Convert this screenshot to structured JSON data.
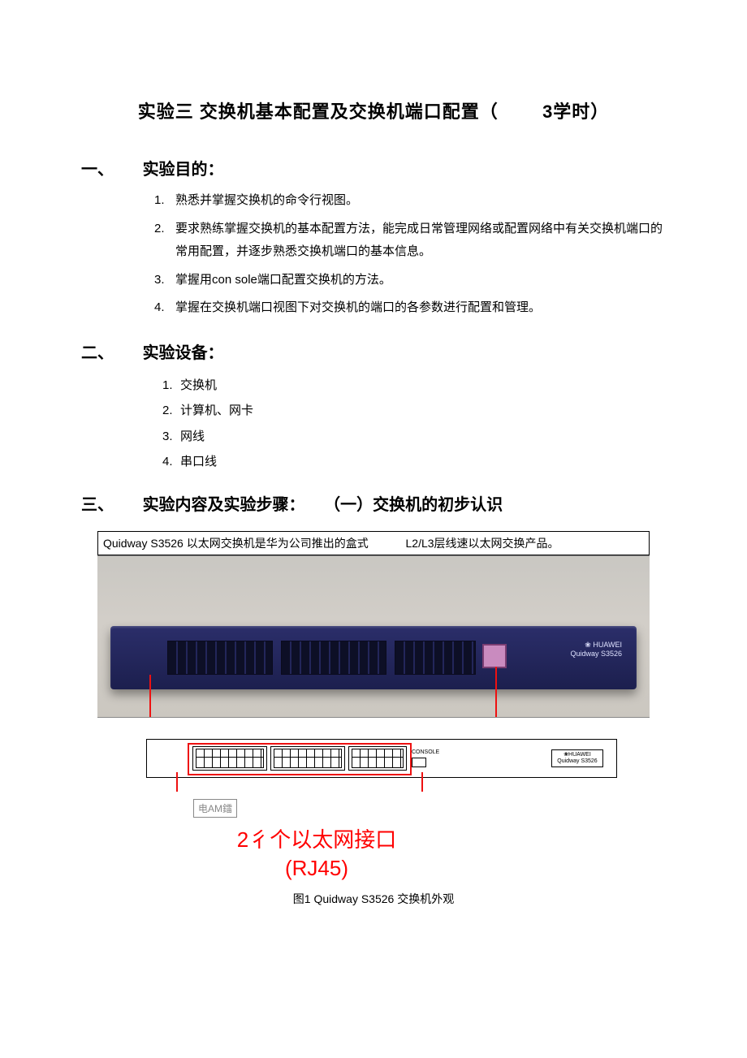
{
  "title_pre": "实验三  交换机基本配置及交换机端口配置（",
  "title_mid": "3学时）",
  "sections": {
    "s1": {
      "num": "一、",
      "label": "实验目的："
    },
    "s2": {
      "num": "二、",
      "label": "实验设备："
    },
    "s3": {
      "num": "三、",
      "label": "实验内容及实验步骤：",
      "sub": "（一）交换机的初步认识"
    }
  },
  "goals": [
    "熟悉并掌握交换机的命令行视图。",
    "要求熟练掌握交换机的基本配置方法，能完成日常管理网络或配置网络中有关交换机端口的常用配置，并逐步熟悉交换机端口的基本信息。",
    "掌握用con sole端口配置交换机的方法。",
    "掌握在交换机端口视图下对交换机的端口的各参数进行配置和管理。"
  ],
  "equipment": [
    "交换机",
    "计算机、网卡",
    "网线",
    "串口线"
  ],
  "figure": {
    "top_text_a": "Quidway S3526 以太网交换机是华为公司推出的盒式",
    "top_text_b": "L2/L3层线速以太网交换产品。",
    "brand_line1": "❀ HUAWEI",
    "brand_line2": "Quidway S3526",
    "console_label": "CONSOLE",
    "diag_logo_l1": "❀HUAWEI",
    "diag_logo_l2": "Quidway S3526",
    "tiny_label": "电AM鐳",
    "big_red_l1": "2彳个以太网接口",
    "big_red_l2": "(RJ45)",
    "caption": "图1 Quidway S3526 交换机外观"
  },
  "colors": {
    "accent_red": "#ff0000",
    "line_red": "#ee1111",
    "text": "#000000",
    "bg": "#ffffff"
  }
}
